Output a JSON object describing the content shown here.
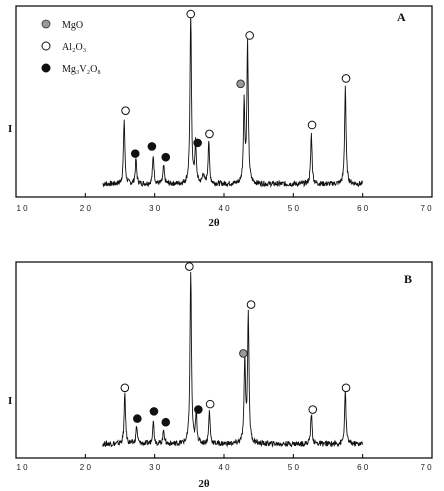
{
  "legend": [
    {
      "key": "mgo",
      "label": "MgO",
      "marker": "gray-filled-circle",
      "color": "#9a9a9a"
    },
    {
      "key": "al2o3",
      "label": "Al₂O₃",
      "marker": "open-circle",
      "color": "#ffffff"
    },
    {
      "key": "mg3v2o8",
      "label": "Mg₃V₂O₈",
      "marker": "black-filled-circle",
      "color": "#111111"
    }
  ],
  "chart_data": [
    {
      "type": "line",
      "panel_label": "A",
      "xlabel": "2θ",
      "ylabel": "I",
      "xlim": [
        10,
        70
      ],
      "xticks": [
        "1 0",
        "2 0",
        "3 0",
        "4 0",
        "5 0",
        "6 0",
        "7 0"
      ],
      "grid": false,
      "peaks": [
        {
          "x": 25.6,
          "h": 0.36
        },
        {
          "x": 27.3,
          "h": 0.14
        },
        {
          "x": 29.8,
          "h": 0.16
        },
        {
          "x": 31.3,
          "h": 0.1
        },
        {
          "x": 35.2,
          "h": 0.95
        },
        {
          "x": 35.9,
          "h": 0.22
        },
        {
          "x": 37.0,
          "h": 0.06
        },
        {
          "x": 37.8,
          "h": 0.24
        },
        {
          "x": 42.9,
          "h": 0.45
        },
        {
          "x": 43.4,
          "h": 0.78
        },
        {
          "x": 52.6,
          "h": 0.28
        },
        {
          "x": 57.5,
          "h": 0.55
        }
      ],
      "markers": [
        {
          "x": 25.8,
          "y": 0.46,
          "kind": "al2o3"
        },
        {
          "x": 35.2,
          "y": 1.0,
          "kind": "al2o3"
        },
        {
          "x": 37.9,
          "y": 0.33,
          "kind": "al2o3"
        },
        {
          "x": 43.7,
          "y": 0.88,
          "kind": "al2o3"
        },
        {
          "x": 52.7,
          "y": 0.38,
          "kind": "al2o3"
        },
        {
          "x": 57.6,
          "y": 0.64,
          "kind": "al2o3"
        },
        {
          "x": 42.4,
          "y": 0.61,
          "kind": "mgo"
        },
        {
          "x": 27.2,
          "y": 0.22,
          "kind": "mg3v2o8"
        },
        {
          "x": 29.6,
          "y": 0.26,
          "kind": "mg3v2o8"
        },
        {
          "x": 31.6,
          "y": 0.2,
          "kind": "mg3v2o8"
        },
        {
          "x": 36.2,
          "y": 0.28,
          "kind": "mg3v2o8"
        }
      ]
    },
    {
      "type": "line",
      "panel_label": "B",
      "xlabel": "2θ",
      "ylabel": "I",
      "xlim": [
        10,
        70
      ],
      "xticks": [
        "1 0",
        "2 0",
        "3 0",
        "4 0",
        "5 0",
        "6 0",
        "7 0"
      ],
      "grid": false,
      "peaks": [
        {
          "x": 25.7,
          "h": 0.28
        },
        {
          "x": 27.4,
          "h": 0.1
        },
        {
          "x": 29.8,
          "h": 0.13
        },
        {
          "x": 31.3,
          "h": 0.08
        },
        {
          "x": 35.2,
          "h": 0.97
        },
        {
          "x": 36.0,
          "h": 0.16
        },
        {
          "x": 37.9,
          "h": 0.18
        },
        {
          "x": 43.0,
          "h": 0.47
        },
        {
          "x": 43.5,
          "h": 0.72
        },
        {
          "x": 52.6,
          "h": 0.17
        },
        {
          "x": 57.5,
          "h": 0.29
        }
      ],
      "markers": [
        {
          "x": 25.7,
          "y": 0.36,
          "kind": "al2o3"
        },
        {
          "x": 35.0,
          "y": 1.03,
          "kind": "al2o3"
        },
        {
          "x": 38.0,
          "y": 0.27,
          "kind": "al2o3"
        },
        {
          "x": 43.9,
          "y": 0.82,
          "kind": "al2o3"
        },
        {
          "x": 52.8,
          "y": 0.24,
          "kind": "al2o3"
        },
        {
          "x": 57.6,
          "y": 0.36,
          "kind": "al2o3"
        },
        {
          "x": 42.8,
          "y": 0.55,
          "kind": "mgo"
        },
        {
          "x": 27.5,
          "y": 0.19,
          "kind": "mg3v2o8"
        },
        {
          "x": 29.9,
          "y": 0.23,
          "kind": "mg3v2o8"
        },
        {
          "x": 31.6,
          "y": 0.17,
          "kind": "mg3v2o8"
        },
        {
          "x": 36.3,
          "y": 0.24,
          "kind": "mg3v2o8"
        }
      ]
    }
  ]
}
